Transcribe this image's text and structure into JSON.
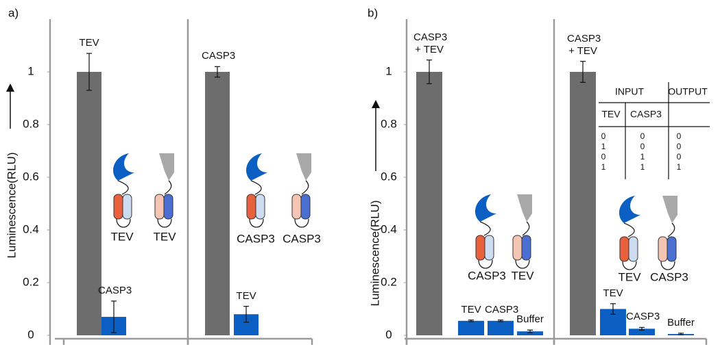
{
  "chart_data": [
    {
      "type": "bar",
      "label": "a)",
      "y_label": "Luminescence(RLU)",
      "ylim": [
        0,
        1.2
      ],
      "yticks": [
        0,
        0.2,
        0.4,
        0.6,
        0.8,
        1
      ],
      "groups": [
        {
          "categories": [
            "TEV",
            "CASP3"
          ],
          "values": [
            1,
            0.07
          ],
          "errors": [
            0.07,
            0.06
          ],
          "colors": [
            "#6d6d6d",
            "#0b5fc2"
          ],
          "diagram_labels": [
            "TEV",
            "TEV"
          ]
        },
        {
          "categories": [
            "CASP3",
            "TEV"
          ],
          "values": [
            1,
            0.08
          ],
          "errors": [
            0.02,
            0.03
          ],
          "colors": [
            "#6d6d6d",
            "#0b5fc2"
          ],
          "diagram_labels": [
            "CASP3",
            "CASP3"
          ]
        }
      ]
    },
    {
      "type": "bar",
      "label": "b)",
      "y_label": "Luminescence(RLU)",
      "ylim": [
        0,
        1.2
      ],
      "yticks": [
        0,
        0.2,
        0.4,
        0.6,
        0.8,
        1
      ],
      "groups": [
        {
          "categories": [
            "CASP3 + TEV",
            "TEV",
            "CASP3",
            "Buffer"
          ],
          "values": [
            1,
            0.055,
            0.055,
            0.015
          ],
          "errors": [
            0.045,
            0.003,
            0.003,
            0.005
          ],
          "colors": [
            "#6d6d6d",
            "#0b5fc2",
            "#0b5fc2",
            "#0b5fc2"
          ],
          "diagram_labels": [
            "CASP3",
            "TEV"
          ]
        },
        {
          "categories": [
            "CASP3 + TEV",
            "TEV",
            "CASP3",
            "Buffer"
          ],
          "values": [
            1,
            0.1,
            0.025,
            0.005
          ],
          "errors": [
            0.04,
            0.02,
            0.005,
            0.003
          ],
          "colors": [
            "#6d6d6d",
            "#0b5fc2",
            "#0b5fc2",
            "#0b5fc2"
          ],
          "diagram_labels": [
            "TEV",
            "CASP3"
          ]
        }
      ],
      "table": {
        "header": [
          "INPUT",
          "OUTPUT"
        ],
        "subheader": [
          "TEV",
          "CASP3"
        ],
        "rows": [
          [
            "0",
            "0",
            "0"
          ],
          [
            "1",
            "0",
            "0"
          ],
          [
            "0",
            "1",
            "0"
          ],
          [
            "1",
            "1",
            "1"
          ]
        ]
      }
    }
  ]
}
